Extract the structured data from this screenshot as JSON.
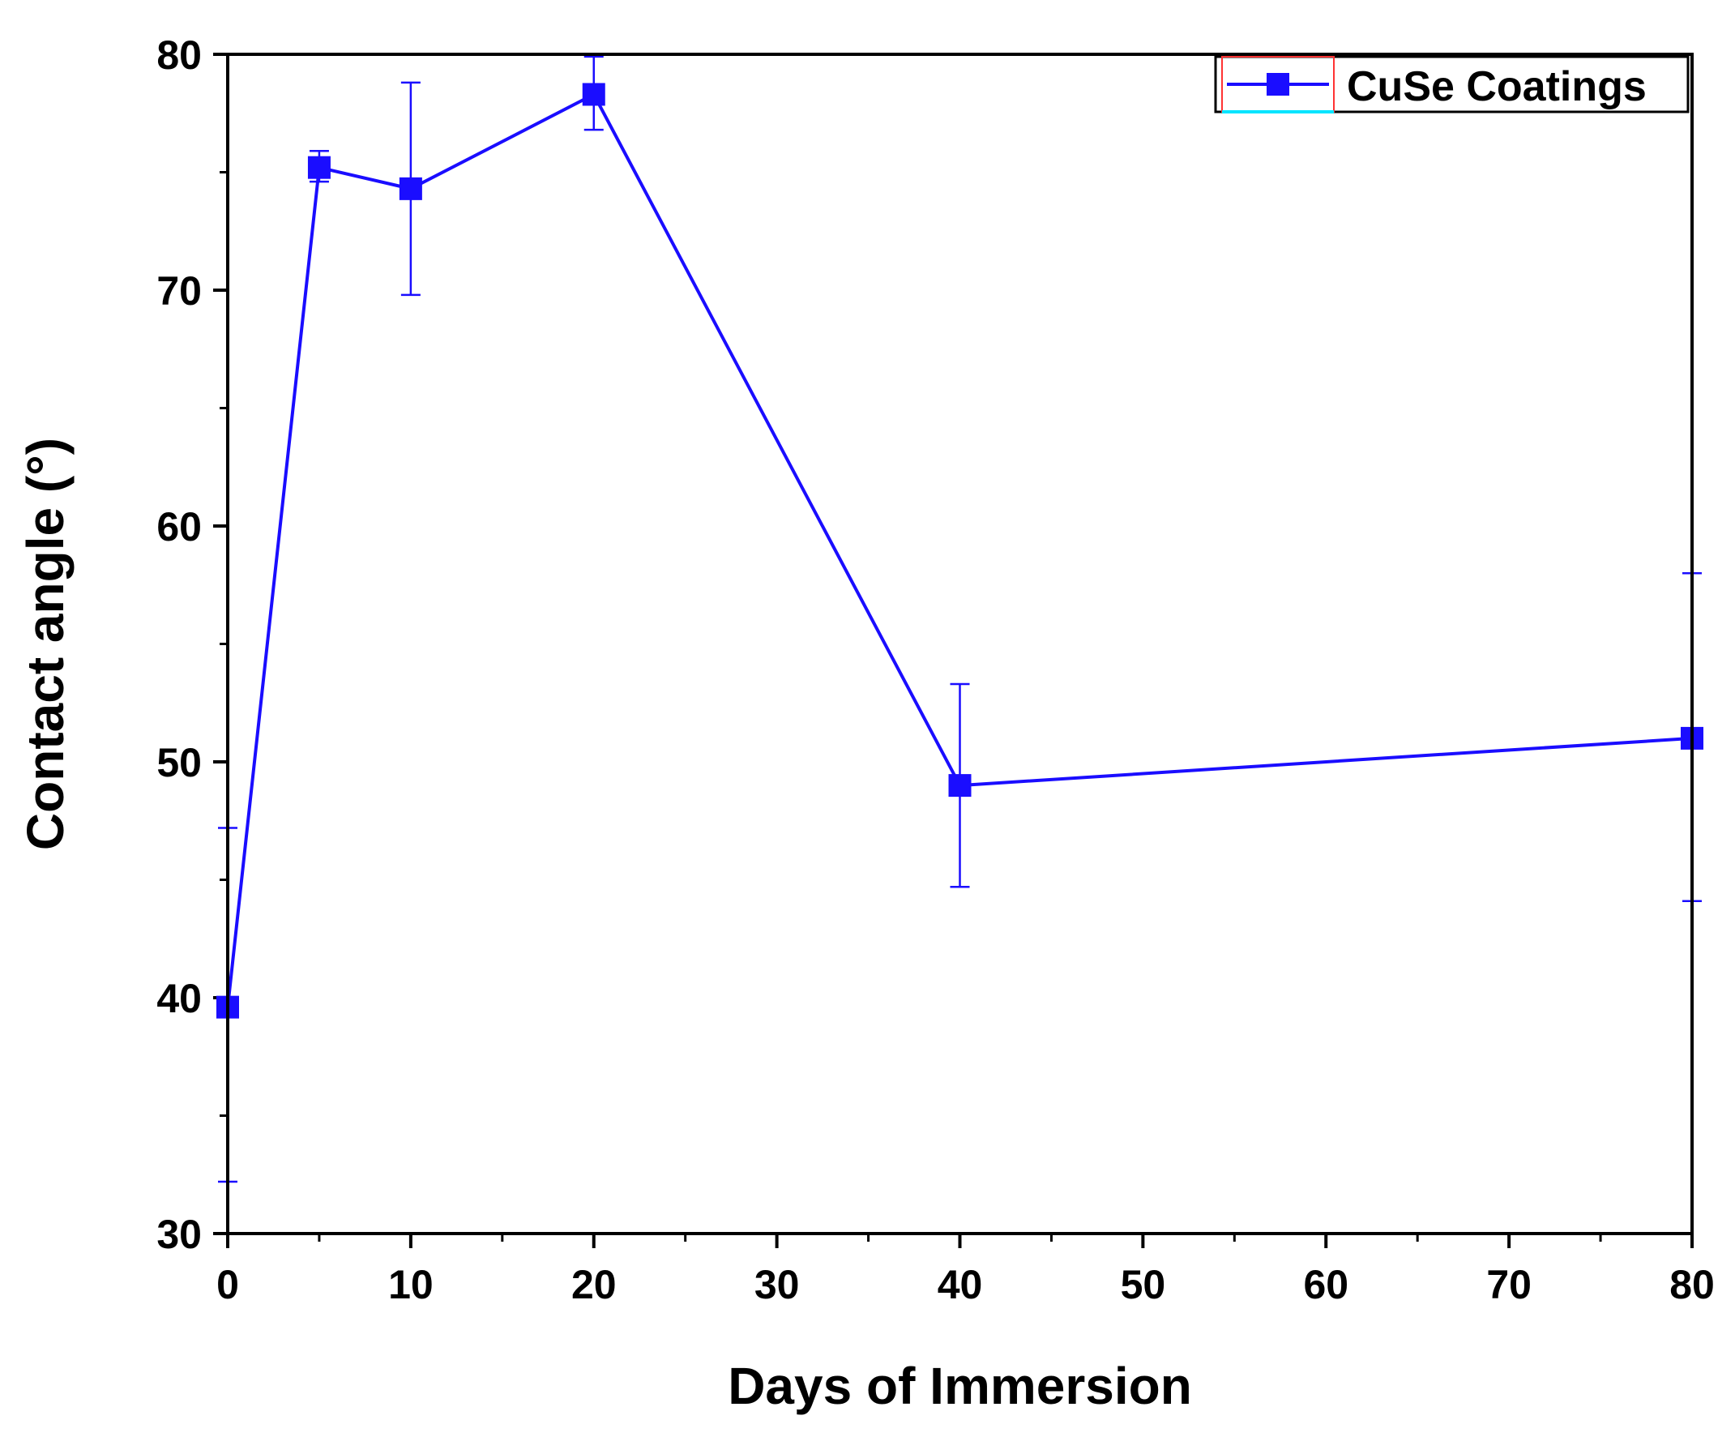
{
  "chart_data": {
    "type": "line",
    "title": "",
    "xlabel": "Days of Immersion",
    "ylabel": "Contact angle (°)",
    "xlim": [
      0,
      80
    ],
    "ylim": [
      30,
      80
    ],
    "x_ticks": [
      0,
      10,
      20,
      30,
      40,
      50,
      60,
      70,
      80
    ],
    "y_ticks": [
      30,
      40,
      50,
      60,
      70,
      80
    ],
    "x_tick_labels": [
      "0",
      "10",
      "20",
      "30",
      "40",
      "50",
      "60",
      "70",
      "80"
    ],
    "y_tick_labels": [
      "30",
      "40",
      "50",
      "60",
      "70",
      "80"
    ],
    "grid": false,
    "legend_position": "top-right",
    "series": [
      {
        "name": "CuSe Coatings",
        "color": "#1a0dff",
        "marker": "square",
        "x": [
          0,
          5,
          10,
          20,
          40,
          80
        ],
        "y": [
          39.6,
          75.2,
          74.3,
          78.3,
          49.0,
          51.0
        ],
        "error_low": [
          32.2,
          74.6,
          69.8,
          76.8,
          44.7,
          44.1
        ],
        "error_high": [
          47.2,
          75.9,
          78.8,
          79.9,
          53.3,
          58.0
        ]
      }
    ]
  }
}
